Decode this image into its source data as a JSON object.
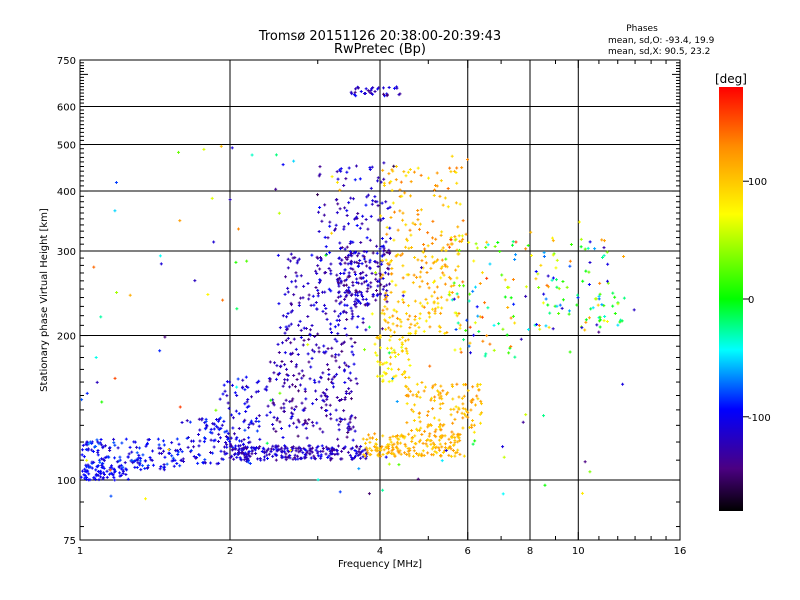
{
  "chart_data": {
    "type": "scatter",
    "title": "Tromsø 20151126 20:38:00-20:39:43",
    "subtitle": "RwPretec (Bp)",
    "xlabel": "Frequency [MHz]",
    "ylabel": "Stationary phase Virtual Height [km]",
    "x_scale": "log",
    "y_scale": "log",
    "xlim": [
      1,
      16
    ],
    "ylim": [
      75,
      750
    ],
    "x_ticks": [
      1,
      2,
      4,
      6,
      8,
      10,
      16
    ],
    "y_ticks": [
      75,
      100,
      200,
      300,
      400,
      500,
      600,
      750
    ],
    "grid": true,
    "phase_stats": {
      "heading": "Phases",
      "line_o": "mean, sd,O: -93.4, 19.9",
      "line_x": "mean, sd,X:  90.5, 23.2"
    },
    "colorbar": {
      "label": "[deg]",
      "range": [
        -180,
        180
      ],
      "ticks": [
        100,
        0,
        -100
      ],
      "colors": [
        "#ff0000",
        "#ff8c00",
        "#ffff00",
        "#00ff00",
        "#00ffff",
        "#0000ff",
        "#4b0082",
        "#000000"
      ]
    },
    "clusters": [
      {
        "name": "",
        "x": [
          1.0,
          1.25
        ],
        "y": [
          100,
          108
        ],
        "n": 70,
        "phase": [
          -110,
          -90
        ]
      },
      {
        "name": "",
        "x": [
          1.0,
          1.6
        ],
        "y": [
          105,
          122
        ],
        "n": 160,
        "phase": [
          -120,
          -75
        ]
      },
      {
        "name": "",
        "x": [
          1.6,
          2.3
        ],
        "y": [
          108,
          135
        ],
        "n": 140,
        "phase": [
          -130,
          -80
        ]
      },
      {
        "name": "",
        "x": [
          2.0,
          3.8
        ],
        "y": [
          110,
          118
        ],
        "n": 240,
        "phase": [
          -140,
          -95
        ]
      },
      {
        "name": "",
        "x": [
          1.9,
          2.4
        ],
        "y": [
          135,
          165
        ],
        "n": 40,
        "phase": [
          -130,
          -90
        ]
      },
      {
        "name": "",
        "x": [
          2.4,
          3.6
        ],
        "y": [
          120,
          200
        ],
        "n": 230,
        "phase": [
          -150,
          -100
        ]
      },
      {
        "name": "",
        "x": [
          2.5,
          3.8
        ],
        "y": [
          200,
          300
        ],
        "n": 160,
        "phase": [
          -140,
          -95
        ]
      },
      {
        "name": "",
        "x": [
          3.3,
          4.2
        ],
        "y": [
          230,
          310
        ],
        "n": 170,
        "phase": [
          -150,
          -95
        ]
      },
      {
        "name": "",
        "x": [
          3.0,
          4.2
        ],
        "y": [
          310,
          460
        ],
        "n": 90,
        "phase": [
          -140,
          -90
        ]
      },
      {
        "name": "",
        "x": [
          3.5,
          4.4
        ],
        "y": [
          630,
          660
        ],
        "n": 35,
        "phase": [
          -150,
          -90
        ]
      },
      {
        "name": "",
        "x": [
          3.7,
          5.8
        ],
        "y": [
          112,
          125
        ],
        "n": 190,
        "phase": [
          90,
          125
        ]
      },
      {
        "name": "",
        "x": [
          4.5,
          6.4
        ],
        "y": [
          125,
          160
        ],
        "n": 130,
        "phase": [
          85,
          130
        ]
      },
      {
        "name": "",
        "x": [
          4.0,
          5.8
        ],
        "y": [
          200,
          300
        ],
        "n": 160,
        "phase": [
          75,
          130
        ]
      },
      {
        "name": "",
        "x": [
          4.0,
          6.0
        ],
        "y": [
          300,
          450
        ],
        "n": 100,
        "phase": [
          80,
          140
        ]
      },
      {
        "name": "",
        "x": [
          3.9,
          4.6
        ],
        "y": [
          160,
          200
        ],
        "n": 60,
        "phase": [
          60,
          110
        ]
      },
      {
        "name": "",
        "x": [
          5.5,
          7.5
        ],
        "y": [
          180,
          320
        ],
        "n": 80,
        "phase": [
          -110,
          160
        ]
      },
      {
        "name": "",
        "x": [
          7.8,
          11.5
        ],
        "y": [
          205,
          320
        ],
        "n": 90,
        "phase": [
          -130,
          140
        ]
      },
      {
        "name": "",
        "x": [
          11.0,
          12.5
        ],
        "y": [
          210,
          250
        ],
        "n": 20,
        "phase": [
          -80,
          60
        ]
      },
      {
        "name": "",
        "x": [
          1.0,
          13.0
        ],
        "y": [
          90,
          500
        ],
        "n": 120,
        "phase": [
          -160,
          160
        ]
      }
    ]
  }
}
